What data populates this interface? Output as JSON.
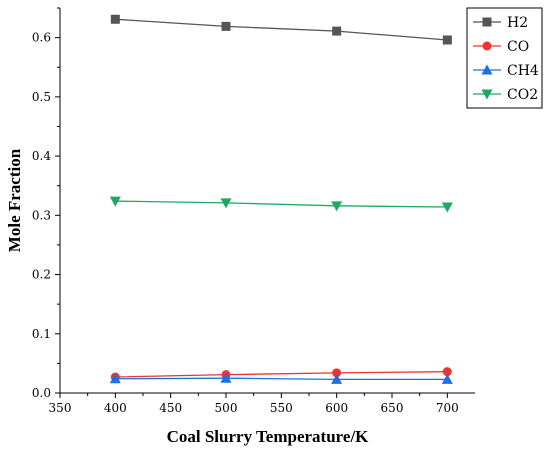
{
  "chart_data": {
    "type": "line",
    "title": "",
    "xlabel": "Coal Slurry Temperature/K",
    "ylabel": "Mole Fraction",
    "xlim": [
      350,
      725
    ],
    "ylim": [
      0,
      0.65
    ],
    "xticks": [
      350,
      400,
      450,
      500,
      550,
      600,
      650,
      700
    ],
    "yticks": [
      0.0,
      0.1,
      0.2,
      0.3,
      0.4,
      0.5,
      0.6
    ],
    "xtick_labels": [
      "350",
      "400",
      "450",
      "500",
      "550",
      "600",
      "650",
      "700"
    ],
    "ytick_labels": [
      "0.0",
      "0.1",
      "0.2",
      "0.3",
      "0.4",
      "0.5",
      "0.6"
    ],
    "grid": false,
    "legend_position": "top-right",
    "x": [
      400,
      500,
      600,
      700
    ],
    "series": [
      {
        "name": "H2",
        "values": [
          0.631,
          0.619,
          0.611,
          0.596
        ],
        "color": "#555555",
        "marker": "square"
      },
      {
        "name": "CO",
        "values": [
          0.027,
          0.031,
          0.034,
          0.036
        ],
        "color": "#ee3333",
        "marker": "circle"
      },
      {
        "name": "CH4",
        "values": [
          0.024,
          0.025,
          0.023,
          0.023
        ],
        "color": "#1f6fdf",
        "marker": "triangle-up"
      },
      {
        "name": "CO2",
        "values": [
          0.324,
          0.321,
          0.316,
          0.314
        ],
        "color": "#1fa85f",
        "marker": "triangle-down"
      }
    ]
  }
}
